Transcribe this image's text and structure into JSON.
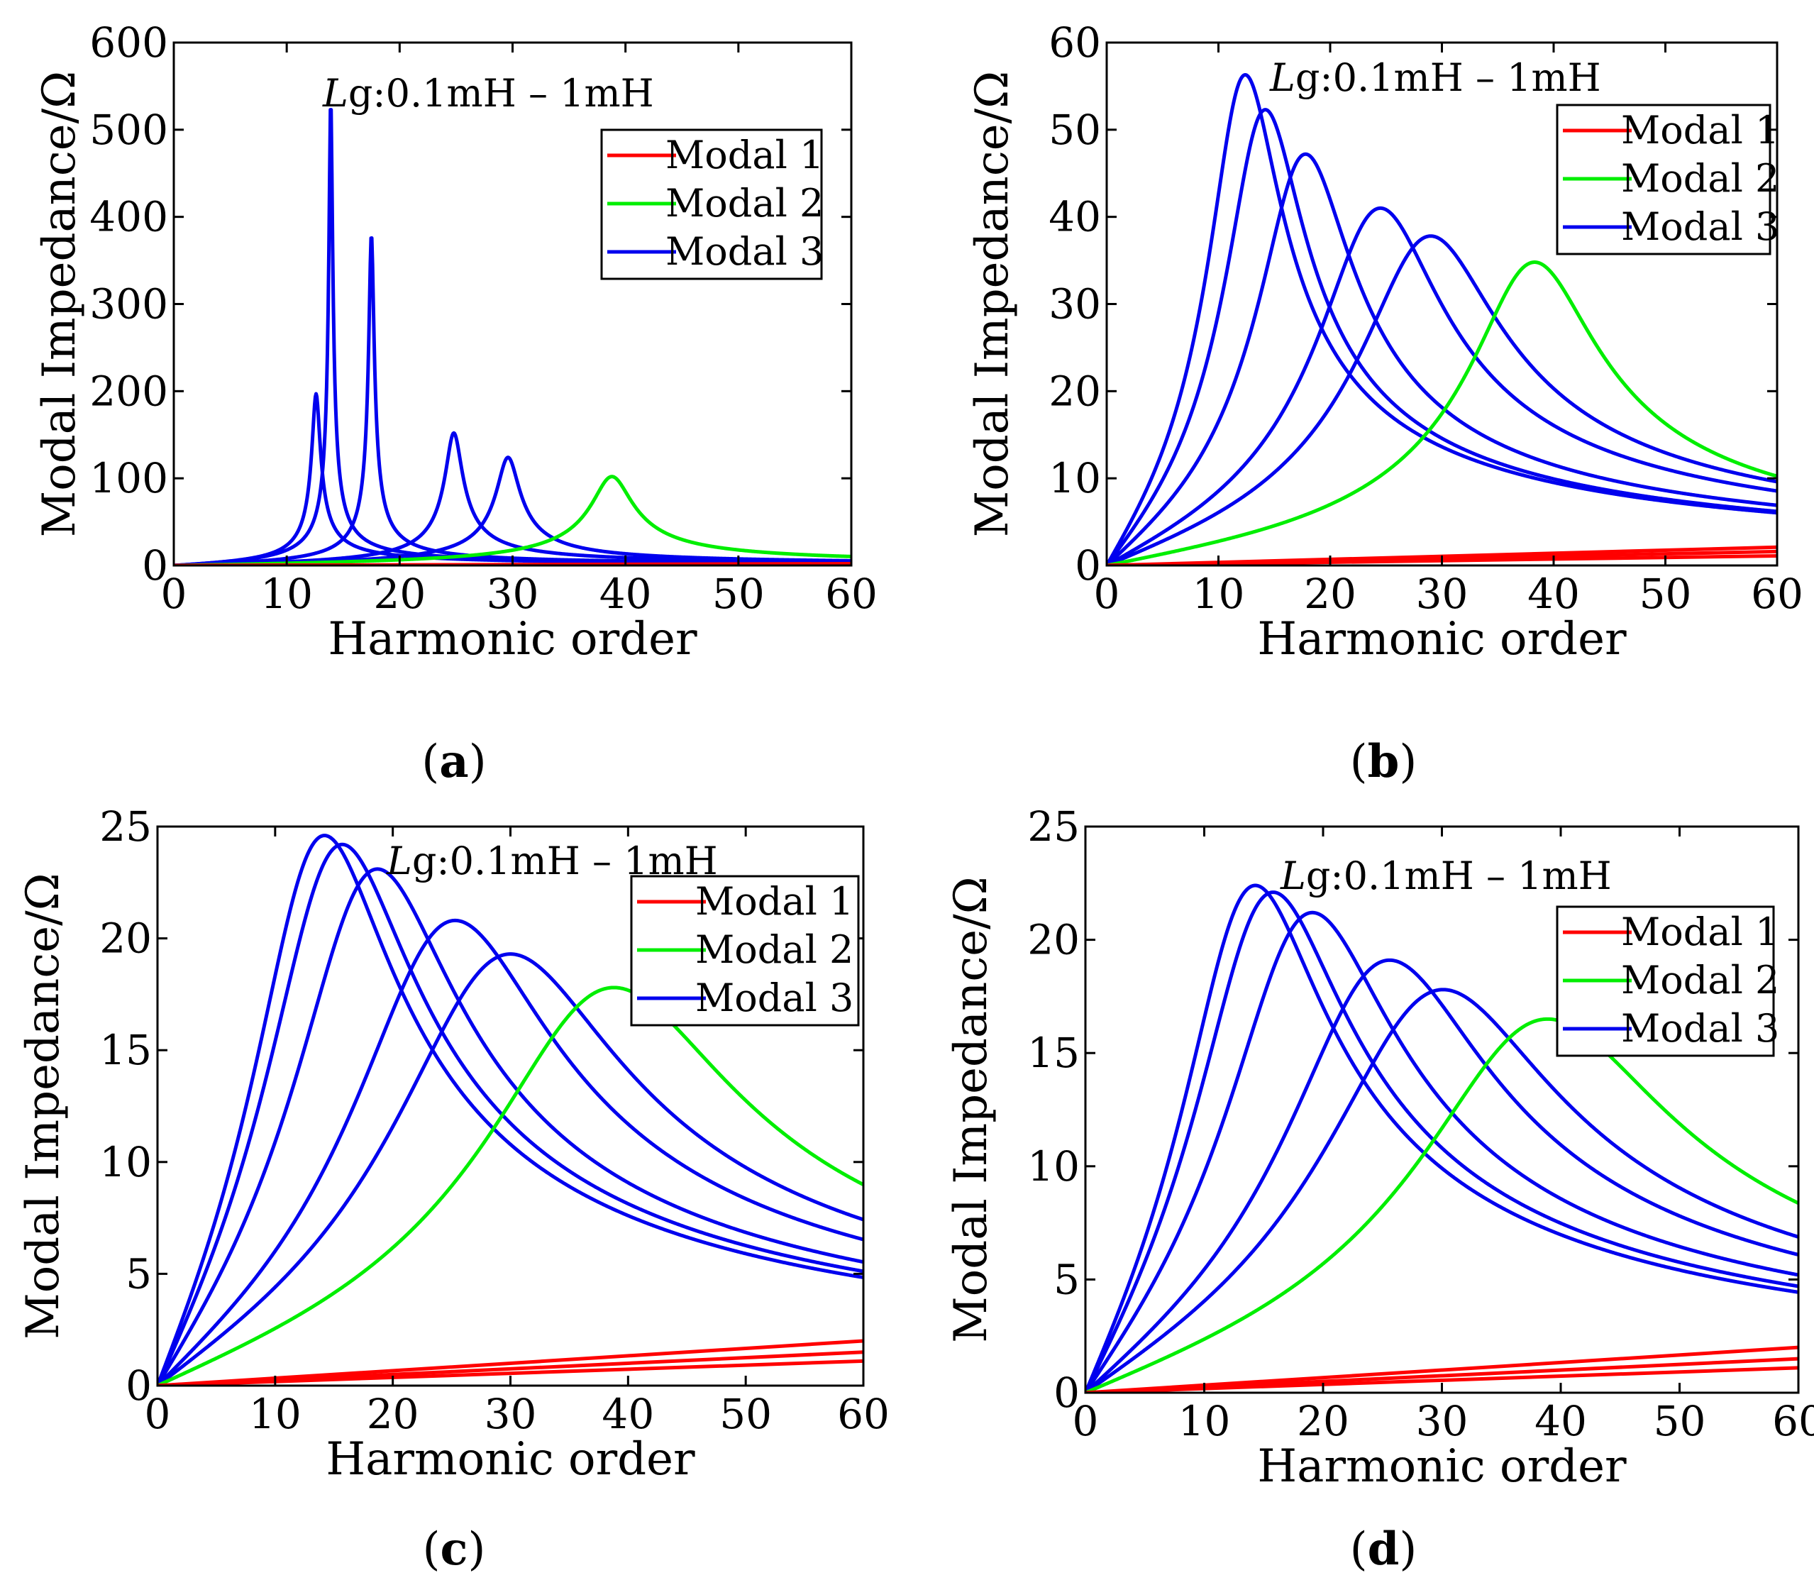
{
  "figure": {
    "modal_colors": {
      "Modal 1": "#ff0000",
      "Modal 2": "#00ee00",
      "Modal 3": "#0000ee"
    }
  },
  "chart_data": [
    {
      "panel": "a",
      "caption": {
        "open": "(",
        "letter": "a",
        "close": ")"
      },
      "type": "line",
      "xlabel": "Harmonic order",
      "ylabel": "Modal Impedance/Ω",
      "xlim": [
        0,
        60
      ],
      "ylim": [
        0,
        600
      ],
      "xticks": [
        "0",
        "10",
        "20",
        "30",
        "40",
        "50",
        "60"
      ],
      "yticks": [
        "0",
        "100",
        "200",
        "300",
        "400",
        "500",
        "600"
      ],
      "annotation": {
        "italic": "L",
        "rest": "g:0.1mH – 1mH"
      },
      "legend": [
        "Modal 1",
        "Modal 2",
        "Modal 3"
      ],
      "legend_position": "top-right",
      "series": [
        {
          "modal": "Modal 3",
          "type": "resonance",
          "peak_x": 12.6,
          "peak_y": 197,
          "q": 18
        },
        {
          "modal": "Modal 3",
          "type": "resonance",
          "peak_x": 13.9,
          "peak_y": 535,
          "q": 45
        },
        {
          "modal": "Modal 3",
          "type": "resonance",
          "peak_x": 17.5,
          "peak_y": 380,
          "q": 40
        },
        {
          "modal": "Modal 3",
          "type": "resonance",
          "peak_x": 24.8,
          "peak_y": 152,
          "q": 17
        },
        {
          "modal": "Modal 3",
          "type": "resonance",
          "peak_x": 29.6,
          "peak_y": 124,
          "q": 15
        },
        {
          "modal": "Modal 2",
          "type": "resonance",
          "peak_x": 38.8,
          "peak_y": 102,
          "q": 11
        },
        {
          "modal": "Modal 1",
          "type": "linear",
          "x": [
            0,
            60
          ],
          "y": [
            0,
            2.0
          ]
        },
        {
          "modal": "Modal 1",
          "type": "linear",
          "x": [
            0,
            60
          ],
          "y": [
            0,
            1.5
          ]
        },
        {
          "modal": "Modal 1",
          "type": "linear",
          "x": [
            0,
            60
          ],
          "y": [
            0,
            1.0
          ]
        }
      ]
    },
    {
      "panel": "b",
      "caption": {
        "open": "(",
        "letter": "b",
        "close": ")"
      },
      "type": "line",
      "xlabel": "Harmonic order",
      "ylabel": "Modal Impedance/Ω",
      "xlim": [
        0,
        60
      ],
      "ylim": [
        0,
        60
      ],
      "xticks": [
        "0",
        "10",
        "20",
        "30",
        "40",
        "50",
        "60"
      ],
      "yticks": [
        "0",
        "10",
        "20",
        "30",
        "40",
        "50",
        "60"
      ],
      "annotation": {
        "italic": "L",
        "rest": "g:0.1mH – 1mH"
      },
      "legend": [
        "Modal 1",
        "Modal 2",
        "Modal 3"
      ],
      "legend_position": "top-right",
      "series": [
        {
          "modal": "Modal 3",
          "type": "resonance",
          "peak_x": 12.4,
          "peak_y": 56.3,
          "q": 2.0
        },
        {
          "modal": "Modal 3",
          "type": "resonance",
          "peak_x": 14.2,
          "peak_y": 52.3,
          "q": 2.1
        },
        {
          "modal": "Modal 3",
          "type": "resonance",
          "peak_x": 17.8,
          "peak_y": 47.2,
          "q": 2.2
        },
        {
          "modal": "Modal 3",
          "type": "resonance",
          "peak_x": 24.5,
          "peak_y": 41.0,
          "q": 2.3
        },
        {
          "modal": "Modal 3",
          "type": "resonance",
          "peak_x": 29.0,
          "peak_y": 37.8,
          "q": 2.4
        },
        {
          "modal": "Modal 2",
          "type": "resonance",
          "peak_x": 38.3,
          "peak_y": 34.8,
          "q": 3.5
        },
        {
          "modal": "Modal 1",
          "type": "linear",
          "x": [
            0,
            60
          ],
          "y": [
            0,
            2.1
          ]
        },
        {
          "modal": "Modal 1",
          "type": "linear",
          "x": [
            0,
            60
          ],
          "y": [
            0,
            1.6
          ]
        },
        {
          "modal": "Modal 1",
          "type": "linear",
          "x": [
            0,
            60
          ],
          "y": [
            0,
            1.1
          ]
        }
      ]
    },
    {
      "panel": "c",
      "caption": {
        "open": "(",
        "letter": "c",
        "close": ")"
      },
      "type": "line",
      "xlabel": "Harmonic order",
      "ylabel": "Modal Impedance/Ω",
      "xlim": [
        0,
        60
      ],
      "ylim": [
        0,
        25
      ],
      "xticks": [
        "0",
        "10",
        "20",
        "30",
        "40",
        "50",
        "60"
      ],
      "yticks": [
        "0",
        "5",
        "10",
        "15",
        "20",
        "25"
      ],
      "annotation": {
        "italic": "L",
        "rest": "g:0.1mH – 1mH"
      },
      "legend": [
        "Modal 1",
        "Modal 2",
        "Modal 3"
      ],
      "legend_position": "top-right",
      "series": [
        {
          "modal": "Modal 3",
          "type": "resonance",
          "peak_x": 14.2,
          "peak_y": 24.6,
          "q": 1.25
        },
        {
          "modal": "Modal 3",
          "type": "resonance",
          "peak_x": 15.7,
          "peak_y": 24.2,
          "q": 1.3
        },
        {
          "modal": "Modal 3",
          "type": "resonance",
          "peak_x": 18.7,
          "peak_y": 23.1,
          "q": 1.4
        },
        {
          "modal": "Modal 3",
          "type": "resonance",
          "peak_x": 25.3,
          "peak_y": 20.8,
          "q": 1.55
        },
        {
          "modal": "Modal 3",
          "type": "resonance",
          "peak_x": 30.0,
          "peak_y": 19.3,
          "q": 1.6
        },
        {
          "modal": "Modal 2",
          "type": "resonance",
          "peak_x": 38.8,
          "peak_y": 17.8,
          "q": 1.9
        },
        {
          "modal": "Modal 1",
          "type": "linear",
          "x": [
            0,
            60
          ],
          "y": [
            0,
            2.0
          ]
        },
        {
          "modal": "Modal 1",
          "type": "linear",
          "x": [
            0,
            60
          ],
          "y": [
            0,
            1.5
          ]
        },
        {
          "modal": "Modal 1",
          "type": "linear",
          "x": [
            0,
            60
          ],
          "y": [
            0,
            1.1
          ]
        }
      ]
    },
    {
      "panel": "d",
      "caption": {
        "open": "(",
        "letter": "d",
        "close": ")"
      },
      "type": "line",
      "xlabel": "Harmonic order",
      "ylabel": "Modal Impedance/Ω",
      "xlim": [
        0,
        60
      ],
      "ylim": [
        0,
        25
      ],
      "xticks": [
        "0",
        "10",
        "20",
        "30",
        "40",
        "50",
        "60"
      ],
      "yticks": [
        "0",
        "5",
        "10",
        "15",
        "20",
        "25"
      ],
      "annotation": {
        "italic": "L",
        "rest": "g:0.1mH – 1mH"
      },
      "legend": [
        "Modal 1",
        "Modal 2",
        "Modal 3"
      ],
      "legend_position": "top-right",
      "series": [
        {
          "modal": "Modal 3",
          "type": "resonance",
          "peak_x": 14.3,
          "peak_y": 22.4,
          "q": 1.25
        },
        {
          "modal": "Modal 3",
          "type": "resonance",
          "peak_x": 15.8,
          "peak_y": 22.1,
          "q": 1.3
        },
        {
          "modal": "Modal 3",
          "type": "resonance",
          "peak_x": 19.1,
          "peak_y": 21.2,
          "q": 1.4
        },
        {
          "modal": "Modal 3",
          "type": "resonance",
          "peak_x": 25.6,
          "peak_y": 19.1,
          "q": 1.55
        },
        {
          "modal": "Modal 3",
          "type": "resonance",
          "peak_x": 30.1,
          "peak_y": 17.8,
          "q": 1.6
        },
        {
          "modal": "Modal 2",
          "type": "resonance",
          "peak_x": 38.9,
          "peak_y": 16.5,
          "q": 1.9
        },
        {
          "modal": "Modal 1",
          "type": "linear",
          "x": [
            0,
            60
          ],
          "y": [
            0,
            2.0
          ]
        },
        {
          "modal": "Modal 1",
          "type": "linear",
          "x": [
            0,
            60
          ],
          "y": [
            0,
            1.5
          ]
        },
        {
          "modal": "Modal 1",
          "type": "linear",
          "x": [
            0,
            60
          ],
          "y": [
            0,
            1.1
          ]
        }
      ]
    }
  ]
}
